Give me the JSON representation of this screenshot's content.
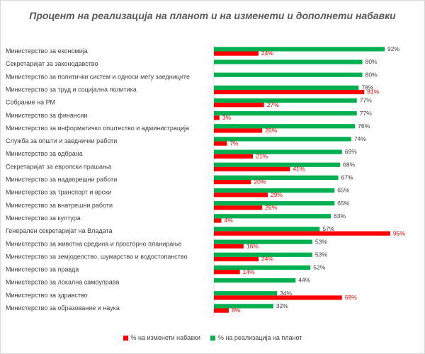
{
  "chart_data": {
    "type": "bar",
    "orientation": "horizontal",
    "title": "Процент на реализација на планот и на изменети и дополнети набавки",
    "categories": [
      "Министерство за економија",
      "Секретаријат за законодавство",
      "Министерство за политички систем и односи меѓу заедниците",
      "Министерство за труд и социјална политика",
      "Собрание на РМ",
      "Министерство за финансии",
      "Министерство за информатичко општество и администрација",
      "Служба за општи и заеднички работи",
      "Министерство за одбрана",
      "Секретаријат за европски прашања",
      "Министерство за надворешни работи",
      "Министерство за транспорт и врски",
      "Министерство за внатрешни работи",
      "Министерство за култура",
      "Генерален секретаријат на Владата",
      "Министерство за животна средина и просторно планирање",
      "Министерство за земјоделство, шумарство и водостопанство",
      "Министерство за правда",
      "Министерство за локална самоуправа",
      "Министерство за здравство",
      "Министерство за образование и наука"
    ],
    "series": [
      {
        "name": "% на реализација на планот",
        "color": "#00b050",
        "values": [
          92,
          80,
          80,
          78,
          77,
          77,
          76,
          74,
          69,
          68,
          67,
          65,
          65,
          63,
          57,
          53,
          53,
          52,
          44,
          34,
          32
        ]
      },
      {
        "name": "% на изменети набавки",
        "color": "#ff0000",
        "values": [
          24,
          null,
          null,
          81,
          27,
          3,
          26,
          7,
          21,
          41,
          20,
          29,
          26,
          4,
          95,
          16,
          24,
          14,
          null,
          69,
          8
        ]
      }
    ],
    "value_suffix": "%",
    "xlim": [
      0,
      100
    ],
    "legend": "bottom"
  },
  "legend": {
    "red_label": "% на изменети набавки",
    "green_label": "% на реализација на планот"
  }
}
